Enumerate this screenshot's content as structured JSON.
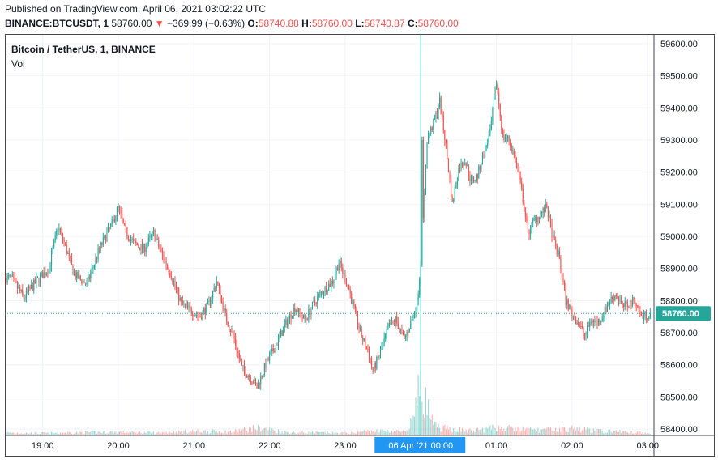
{
  "header": {
    "published": "Published on TradingView.com, April 06, 2021 03:02:22 UTC",
    "symbol": "BINANCE:BTCUSDT, 1",
    "last": "58760.00",
    "change_arrow": "▼",
    "change": "−369.99 (−0.63%)",
    "o_label": "O:",
    "o": "58740.88",
    "h_label": "H:",
    "h": "58760.00",
    "l_label": "L:",
    "l": "58740.87",
    "c_label": "C:",
    "c": "58760.00"
  },
  "legend": {
    "title": "Bitcoin / TetherUS, 1, BINANCE",
    "volume": "Vol"
  },
  "colors": {
    "up": "#26a69a",
    "down": "#ef5350",
    "grid": "#f0f3fa",
    "axis_text": "#131722",
    "crosshair": "#26a69a",
    "time_highlight": "#2196f3"
  },
  "chart_data": {
    "type": "candlestick",
    "y_ticks": [
      "58400.00",
      "58500.00",
      "58600.00",
      "58700.00",
      "58800.00",
      "58900.00",
      "59000.00",
      "59100.00",
      "59200.00",
      "59300.00",
      "59400.00",
      "59500.00",
      "59600.00"
    ],
    "x_ticks": [
      "19:00",
      "20:00",
      "21:00",
      "22:00",
      "23:00",
      "00:00",
      "01:00",
      "02:00",
      "03:00"
    ],
    "x_highlight_label": "06 Apr '21    00:00",
    "ylim": [
      58380,
      59630
    ],
    "last_price_label": "58760.00",
    "last_price": 58760,
    "close_series": [
      [
        "18:35",
        58870
      ],
      [
        "18:45",
        58810
      ],
      [
        "18:55",
        58860
      ],
      [
        "19:05",
        58900
      ],
      [
        "19:12",
        59030
      ],
      [
        "19:17",
        58980
      ],
      [
        "19:25",
        58880
      ],
      [
        "19:35",
        58850
      ],
      [
        "19:45",
        58960
      ],
      [
        "19:55",
        59040
      ],
      [
        "20:00",
        59090
      ],
      [
        "20:05",
        59020
      ],
      [
        "20:12",
        58980
      ],
      [
        "20:20",
        58960
      ],
      [
        "20:28",
        59010
      ],
      [
        "20:35",
        58940
      ],
      [
        "20:42",
        58880
      ],
      [
        "20:50",
        58790
      ],
      [
        "20:57",
        58770
      ],
      [
        "21:05",
        58750
      ],
      [
        "21:12",
        58790
      ],
      [
        "21:18",
        58860
      ],
      [
        "21:25",
        58750
      ],
      [
        "21:32",
        58680
      ],
      [
        "21:38",
        58590
      ],
      [
        "21:45",
        58560
      ],
      [
        "21:50",
        58530
      ],
      [
        "21:57",
        58600
      ],
      [
        "22:05",
        58660
      ],
      [
        "22:12",
        58720
      ],
      [
        "22:20",
        58780
      ],
      [
        "22:28",
        58740
      ],
      [
        "22:35",
        58790
      ],
      [
        "22:42",
        58830
      ],
      [
        "22:50",
        58860
      ],
      [
        "22:55",
        58920
      ],
      [
        "23:02",
        58850
      ],
      [
        "23:08",
        58760
      ],
      [
        "23:12",
        58700
      ],
      [
        "23:18",
        58640
      ],
      [
        "23:22",
        58580
      ],
      [
        "23:28",
        58640
      ],
      [
        "23:35",
        58720
      ],
      [
        "23:40",
        58740
      ],
      [
        "23:47",
        58680
      ],
      [
        "23:52",
        58730
      ],
      [
        "23:57",
        58790
      ],
      [
        "00:01",
        58960
      ],
      [
        "00:05",
        59300
      ],
      [
        "00:10",
        59350
      ],
      [
        "00:15",
        59420
      ],
      [
        "00:20",
        59280
      ],
      [
        "00:25",
        59100
      ],
      [
        "00:30",
        59210
      ],
      [
        "00:35",
        59240
      ],
      [
        "00:40",
        59170
      ],
      [
        "00:45",
        59190
      ],
      [
        "00:50",
        59260
      ],
      [
        "00:55",
        59320
      ],
      [
        "01:00",
        59480
      ],
      [
        "01:05",
        59310
      ],
      [
        "01:10",
        59300
      ],
      [
        "01:15",
        59240
      ],
      [
        "01:20",
        59140
      ],
      [
        "01:25",
        59010
      ],
      [
        "01:30",
        59050
      ],
      [
        "01:35",
        59070
      ],
      [
        "01:40",
        59090
      ],
      [
        "01:45",
        58990
      ],
      [
        "01:50",
        58930
      ],
      [
        "01:55",
        58800
      ],
      [
        "02:00",
        58760
      ],
      [
        "02:05",
        58730
      ],
      [
        "02:10",
        58690
      ],
      [
        "02:15",
        58740
      ],
      [
        "02:20",
        58730
      ],
      [
        "02:25",
        58760
      ],
      [
        "02:30",
        58800
      ],
      [
        "02:35",
        58820
      ],
      [
        "02:40",
        58780
      ],
      [
        "02:45",
        58790
      ],
      [
        "02:50",
        58800
      ],
      [
        "02:55",
        58750
      ],
      [
        "03:02",
        58760
      ]
    ],
    "volume_series": [
      [
        "18:35",
        0.35
      ],
      [
        "19:00",
        0.3
      ],
      [
        "19:30",
        0.4
      ],
      [
        "20:00",
        0.45
      ],
      [
        "20:30",
        0.35
      ],
      [
        "21:00",
        0.55
      ],
      [
        "21:30",
        0.5
      ],
      [
        "21:50",
        1.0
      ],
      [
        "22:15",
        0.4
      ],
      [
        "22:45",
        0.35
      ],
      [
        "23:05",
        0.3
      ],
      [
        "23:15",
        0.55
      ],
      [
        "23:35",
        0.6
      ],
      [
        "23:50",
        0.45
      ],
      [
        "00:00",
        6.5
      ],
      [
        "00:10",
        1.3
      ],
      [
        "00:20",
        0.9
      ],
      [
        "00:40",
        0.6
      ],
      [
        "01:00",
        1.0
      ],
      [
        "01:20",
        0.8
      ],
      [
        "01:40",
        0.7
      ],
      [
        "02:00",
        0.9
      ],
      [
        "02:20",
        0.6
      ],
      [
        "02:40",
        0.5
      ],
      [
        "03:00",
        0.35
      ]
    ]
  }
}
